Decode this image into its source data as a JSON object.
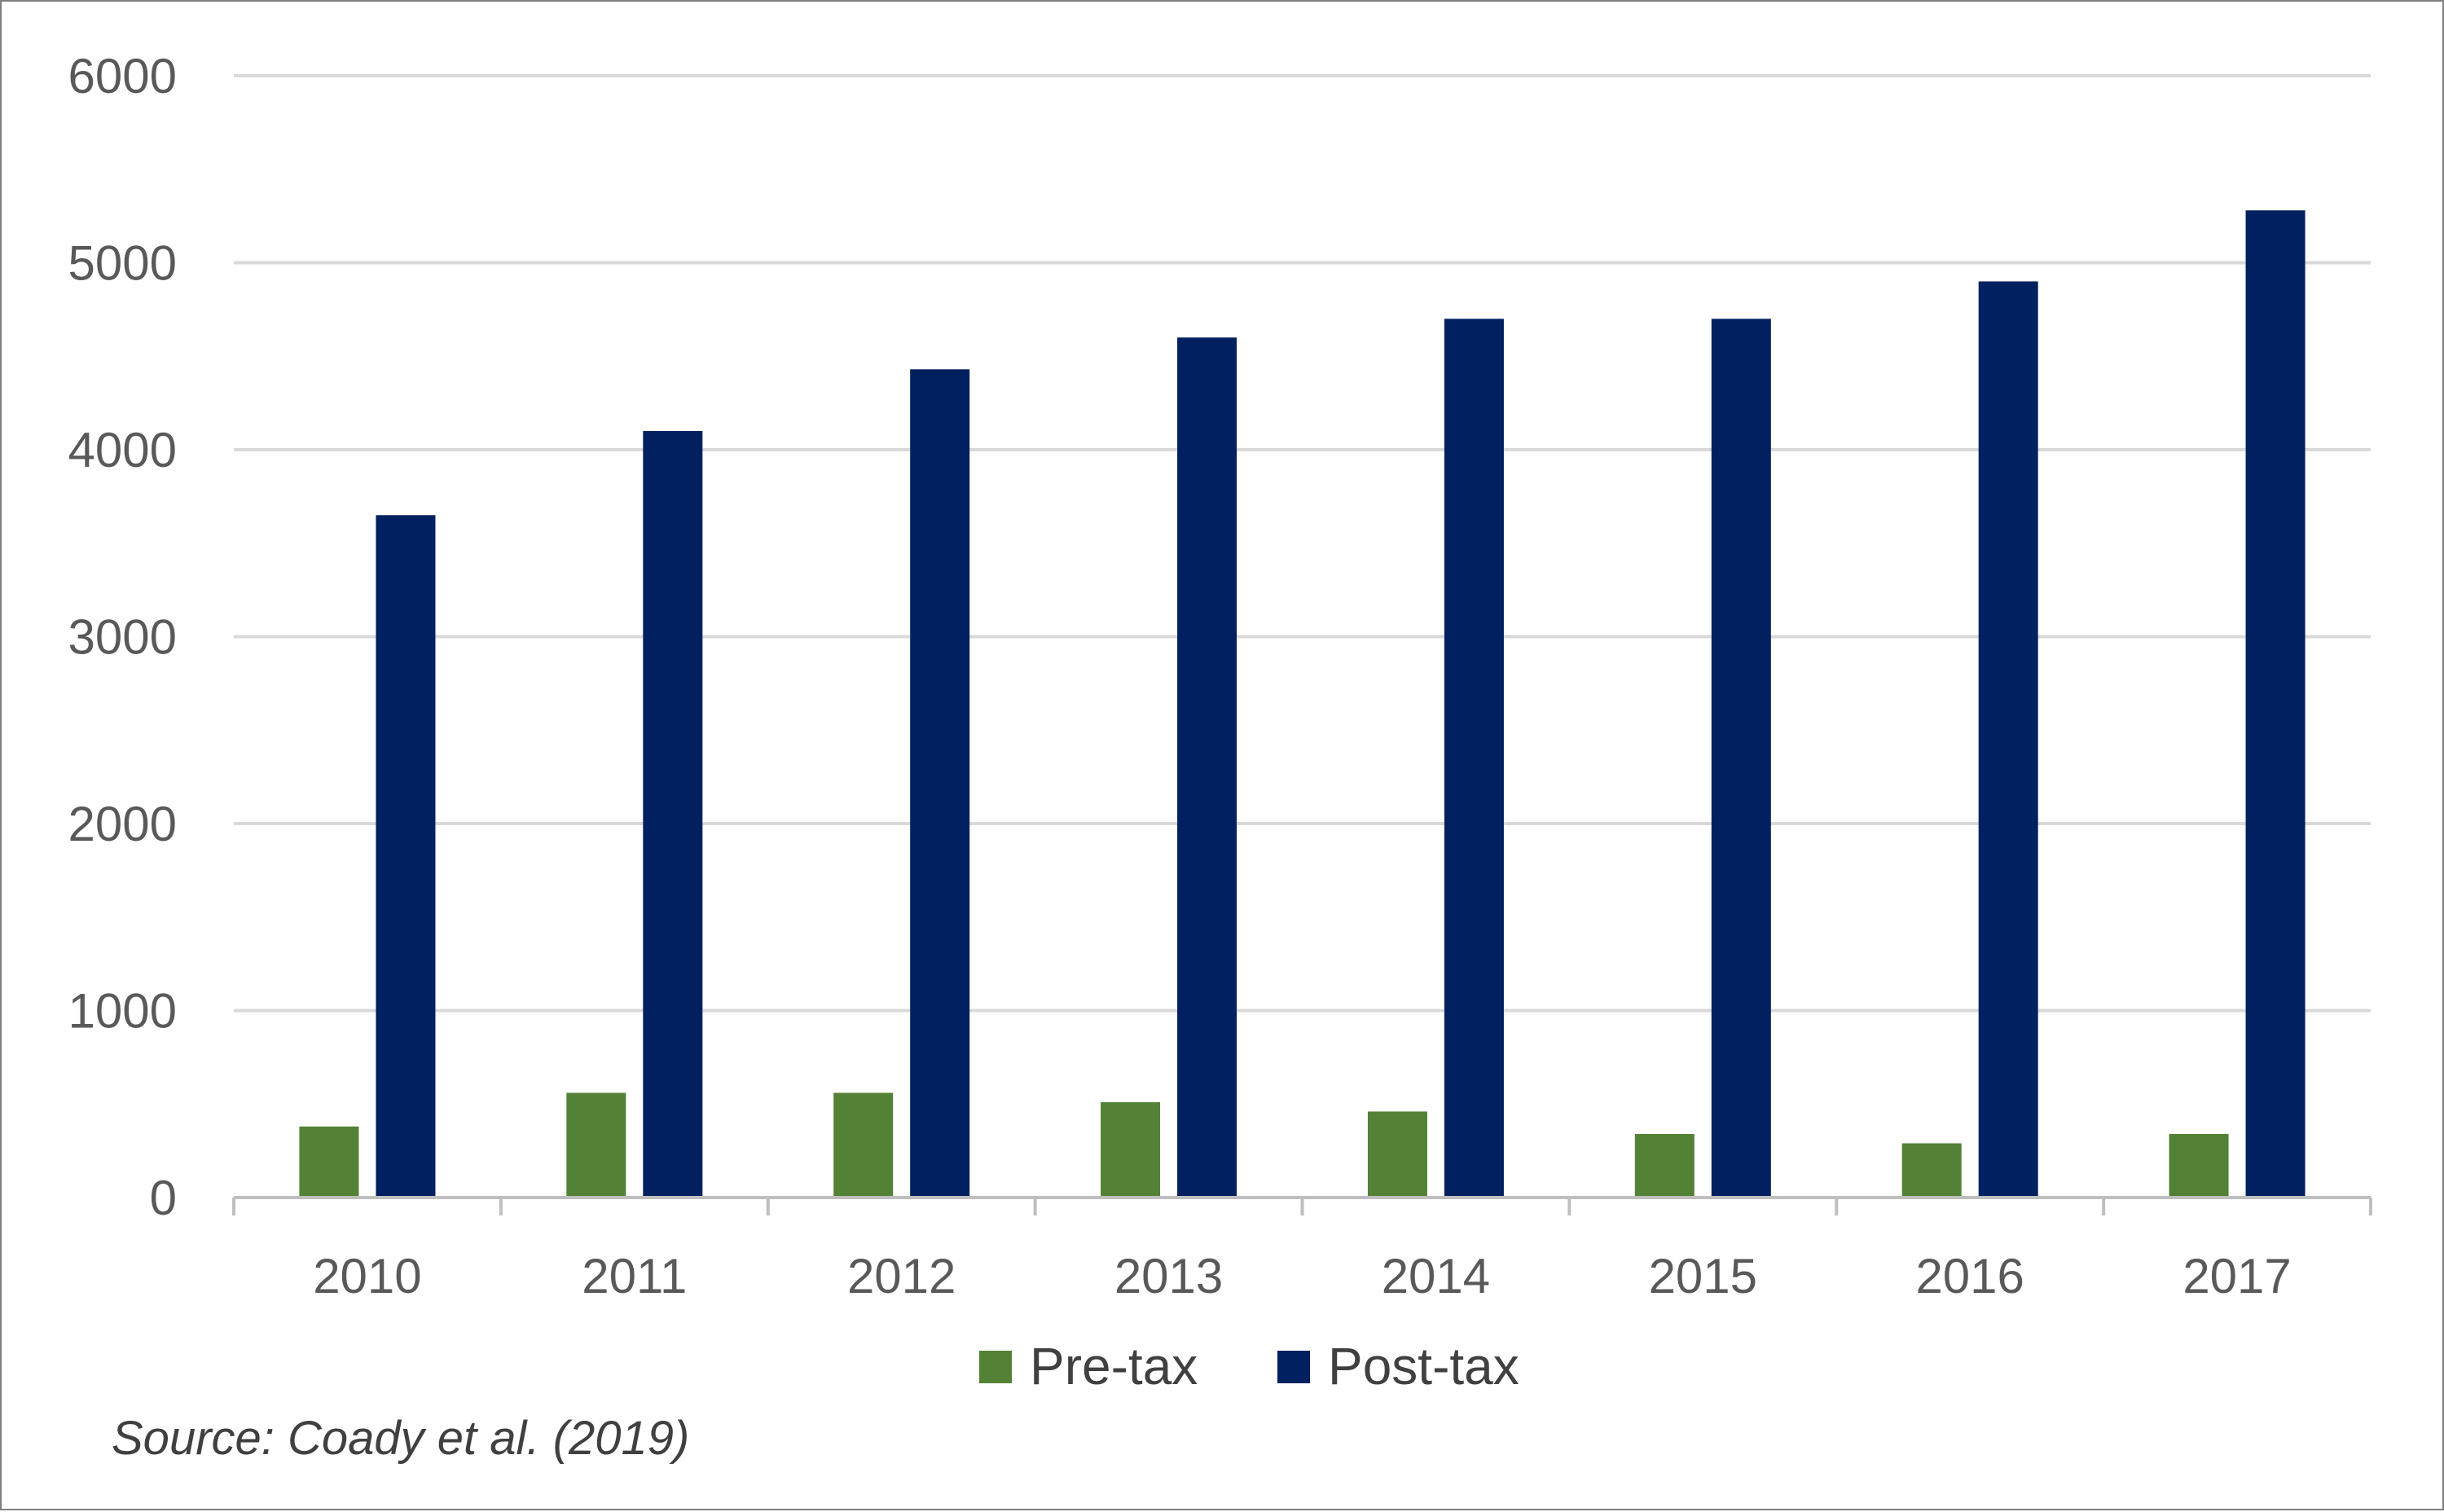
{
  "colors": {
    "pre_tax": "#538135",
    "post_tax": "#002060",
    "gridline": "#d9d9d9",
    "axis": "#bfbfbf",
    "text": "#595959"
  },
  "chart_data": {
    "type": "bar",
    "categories": [
      "2010",
      "2011",
      "2012",
      "2013",
      "2014",
      "2015",
      "2016",
      "2017"
    ],
    "series": [
      {
        "name": "Pre-tax",
        "values": [
          380,
          560,
          560,
          510,
          460,
          340,
          290,
          340
        ]
      },
      {
        "name": "Post-tax",
        "values": [
          3650,
          4100,
          4430,
          4600,
          4700,
          4700,
          4900,
          5280
        ]
      }
    ],
    "ylim": [
      0,
      6000
    ],
    "yticks": [
      0,
      1000,
      2000,
      3000,
      4000,
      5000,
      6000
    ],
    "grid": true,
    "legend_position": "bottom"
  },
  "source_note": "Source: Coady et al. (2019)"
}
